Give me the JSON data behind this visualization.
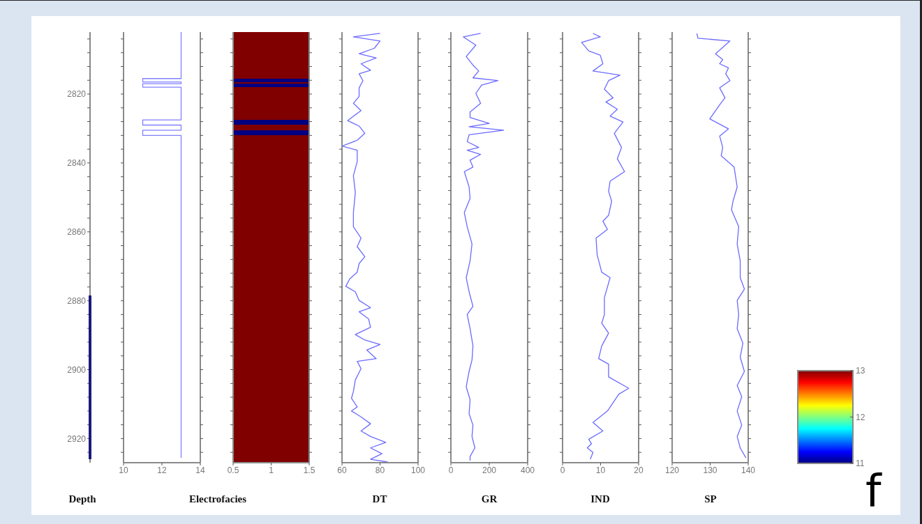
{
  "chart_data": [
    {
      "type": "line",
      "orientation": "horizontal",
      "xlabel": "Electrofacies",
      "ylabel": "Depth",
      "series": [
        {
          "color": "#8080ff",
          "x": [
            2802,
            2815.5,
            2815.5,
            2816.5,
            2816.5,
            2817,
            2817,
            2818,
            2818,
            2827.5,
            2827.5,
            2829,
            2829,
            2830.5,
            2830.5,
            2832,
            2832,
            2925.6
          ],
          "values": [
            13,
            13,
            11,
            11,
            13,
            13,
            11,
            11,
            13,
            13,
            11,
            11,
            13,
            13,
            11,
            11,
            13,
            13
          ]
        }
      ],
      "xlim": [
        10,
        14
      ],
      "xticks": [
        10,
        12,
        14
      ],
      "ylim": [
        2927,
        2802
      ],
      "yticks": [
        {
          "value": 2804,
          "label": null
        },
        {
          "value": 2808,
          "label": null
        },
        {
          "value": 2812,
          "label": null
        },
        {
          "value": 2816,
          "label": null
        },
        2820,
        {
          "value": 2824,
          "label": null
        },
        {
          "value": 2828,
          "label": null
        },
        {
          "value": 2832,
          "label": null
        },
        {
          "value": 2836,
          "label": null
        },
        2840,
        {
          "value": 2844,
          "label": null
        },
        {
          "value": 2848,
          "label": null
        },
        {
          "value": 2852,
          "label": null
        },
        {
          "value": 2856,
          "label": null
        },
        2860,
        {
          "value": 2864,
          "label": null
        },
        {
          "value": 2868,
          "label": null
        },
        {
          "value": 2872,
          "label": null
        },
        {
          "value": 2876,
          "label": null
        },
        2880,
        {
          "value": 2884,
          "label": null
        },
        {
          "value": 2888,
          "label": null
        },
        {
          "value": 2892,
          "label": null
        },
        {
          "value": 2896,
          "label": null
        },
        2900,
        {
          "value": 2904,
          "label": null
        },
        {
          "value": 2908,
          "label": null
        },
        {
          "value": 2912,
          "label": null
        },
        {
          "value": 2916,
          "label": null
        },
        2920,
        {
          "value": 2924,
          "label": null
        }
      ]
    },
    {
      "type": "heatmap",
      "tick_labels": "x",
      "cells": [
        [
          13
        ],
        [
          13
        ],
        [
          13
        ],
        [
          13
        ],
        [
          13
        ],
        [
          13
        ],
        [
          13
        ],
        [
          13
        ],
        [
          13
        ],
        [
          13
        ],
        [
          13
        ],
        [
          13
        ],
        [
          13
        ],
        [
          13
        ],
        [
          13
        ],
        [
          13
        ],
        [
          13
        ],
        [
          13
        ],
        [
          13
        ],
        [
          13
        ],
        [
          13
        ],
        [
          13
        ],
        [
          13
        ],
        [
          13
        ],
        [
          13
        ],
        [
          13
        ],
        [
          13
        ],
        [
          11
        ],
        [
          11
        ],
        [
          13
        ],
        [
          11
        ],
        [
          11
        ],
        [
          13
        ],
        [
          13
        ],
        [
          13
        ],
        [
          13
        ],
        [
          13
        ],
        [
          13
        ],
        [
          13
        ],
        [
          13
        ],
        [
          13
        ],
        [
          13
        ],
        [
          13
        ],
        [
          13
        ],
        [
          13
        ],
        [
          13
        ],
        [
          13
        ],
        [
          13
        ],
        [
          13
        ],
        [
          13
        ],
        [
          13
        ],
        [
          11
        ],
        [
          11
        ],
        [
          11
        ],
        [
          13
        ],
        [
          13
        ],
        [
          13
        ],
        [
          11
        ],
        [
          11
        ],
        [
          11
        ],
        [
          13
        ],
        [
          13
        ],
        [
          13
        ],
        [
          13
        ],
        [
          13
        ],
        [
          13
        ],
        [
          13
        ],
        [
          13
        ],
        [
          13
        ],
        [
          13
        ],
        [
          13
        ],
        [
          13
        ],
        [
          13
        ],
        [
          13
        ],
        [
          13
        ],
        [
          13
        ],
        [
          13
        ],
        [
          13
        ],
        [
          13
        ],
        [
          13
        ],
        [
          13
        ],
        [
          13
        ],
        [
          13
        ],
        [
          13
        ],
        [
          13
        ],
        [
          13
        ],
        [
          13
        ],
        [
          13
        ],
        [
          13
        ],
        [
          13
        ],
        [
          13
        ],
        [
          13
        ],
        [
          13
        ],
        [
          13
        ],
        [
          13
        ],
        [
          13
        ],
        [
          13
        ],
        [
          13
        ],
        [
          13
        ],
        [
          13
        ],
        [
          13
        ],
        [
          13
        ],
        [
          13
        ],
        [
          13
        ],
        [
          13
        ],
        [
          13
        ],
        [
          13
        ],
        [
          13
        ],
        [
          13
        ],
        [
          13
        ],
        [
          13
        ],
        [
          13
        ],
        [
          13
        ],
        [
          13
        ],
        [
          13
        ],
        [
          13
        ],
        [
          13
        ],
        [
          13
        ],
        [
          13
        ],
        [
          13
        ],
        [
          13
        ],
        [
          13
        ],
        [
          13
        ],
        [
          13
        ],
        [
          13
        ],
        [
          13
        ],
        [
          13
        ],
        [
          13
        ],
        [
          13
        ],
        [
          13
        ],
        [
          13
        ],
        [
          13
        ],
        [
          13
        ],
        [
          13
        ],
        [
          13
        ],
        [
          13
        ],
        [
          13
        ],
        [
          13
        ],
        [
          13
        ],
        [
          13
        ],
        [
          13
        ],
        [
          13
        ],
        [
          13
        ],
        [
          13
        ],
        [
          13
        ],
        [
          13
        ],
        [
          13
        ],
        [
          13
        ],
        [
          13
        ],
        [
          13
        ],
        [
          13
        ],
        [
          13
        ],
        [
          13
        ],
        [
          13
        ],
        [
          13
        ],
        [
          13
        ],
        [
          13
        ],
        [
          13
        ],
        [
          13
        ],
        [
          13
        ],
        [
          13
        ],
        [
          13
        ],
        [
          13
        ],
        [
          13
        ],
        [
          13
        ],
        [
          13
        ],
        [
          13
        ],
        [
          13
        ],
        [
          13
        ],
        [
          13
        ],
        [
          13
        ],
        [
          13
        ],
        [
          13
        ],
        [
          13
        ],
        [
          13
        ],
        [
          13
        ],
        [
          13
        ],
        [
          13
        ],
        [
          13
        ],
        [
          13
        ],
        [
          13
        ],
        [
          13
        ],
        [
          13
        ],
        [
          13
        ],
        [
          13
        ],
        [
          13
        ],
        [
          13
        ],
        [
          13
        ],
        [
          13
        ],
        [
          13
        ],
        [
          13
        ],
        [
          13
        ],
        [
          13
        ],
        [
          13
        ],
        [
          13
        ],
        [
          13
        ],
        [
          13
        ],
        [
          13
        ],
        [
          13
        ],
        [
          13
        ],
        [
          13
        ],
        [
          13
        ],
        [
          13
        ],
        [
          13
        ],
        [
          13
        ],
        [
          13
        ],
        [
          13
        ],
        [
          13
        ],
        [
          13
        ],
        [
          13
        ],
        [
          13
        ],
        [
          13
        ],
        [
          13
        ],
        [
          13
        ],
        [
          13
        ],
        [
          13
        ],
        [
          13
        ],
        [
          13
        ],
        [
          13
        ],
        [
          13
        ],
        [
          13
        ],
        [
          13
        ],
        [
          13
        ],
        [
          13
        ],
        [
          13
        ],
        [
          13
        ],
        [
          13
        ],
        [
          13
        ],
        [
          13
        ],
        [
          13
        ],
        [
          13
        ],
        [
          13
        ],
        [
          13
        ],
        [
          13
        ],
        [
          13
        ],
        [
          13
        ],
        [
          13
        ],
        [
          13
        ],
        [
          13
        ],
        [
          13
        ],
        [
          13
        ],
        [
          13
        ],
        [
          13
        ],
        [
          13
        ],
        [
          13
        ],
        [
          13
        ],
        [
          13
        ],
        [
          13
        ],
        [
          13
        ],
        [
          13
        ]
      ],
      "clim": [
        11,
        13
      ],
      "cticks": [
        11,
        12,
        13
      ],
      "xlim": [
        0.5,
        1.5
      ],
      "xticks": [
        0.5,
        1,
        1.5
      ],
      "ylim": [
        2927,
        2802
      ],
      "yticks": [
        {
          "value": 2804,
          "label": null
        },
        {
          "value": 2808,
          "label": null
        },
        {
          "value": 2812,
          "label": null
        },
        {
          "value": 2816,
          "label": null
        },
        2820,
        {
          "value": 2824,
          "label": null
        },
        {
          "value": 2828,
          "label": null
        },
        {
          "value": 2832,
          "label": null
        },
        {
          "value": 2836,
          "label": null
        },
        2840,
        {
          "value": 2844,
          "label": null
        },
        {
          "value": 2848,
          "label": null
        },
        {
          "value": 2852,
          "label": null
        },
        {
          "value": 2856,
          "label": null
        },
        2860,
        {
          "value": 2864,
          "label": null
        },
        {
          "value": 2868,
          "label": null
        },
        {
          "value": 2872,
          "label": null
        },
        {
          "value": 2876,
          "label": null
        },
        2880,
        {
          "value": 2884,
          "label": null
        },
        {
          "value": 2888,
          "label": null
        },
        {
          "value": 2892,
          "label": null
        },
        {
          "value": 2896,
          "label": null
        },
        2900,
        {
          "value": 2904,
          "label": null
        },
        {
          "value": 2908,
          "label": null
        },
        {
          "value": 2912,
          "label": null
        },
        {
          "value": 2916,
          "label": null
        },
        2920,
        {
          "value": 2924,
          "label": null
        }
      ],
      "annotations": [
        "f"
      ]
    },
    {
      "type": "line",
      "orientation": "horizontal",
      "xlabel": "DT",
      "tick_labels": "x",
      "series": [
        {
          "color": "#6b6bff",
          "x": [
            2802.4,
            2803.4,
            2804.6,
            2806.7,
            2808.3,
            2809.5,
            2811.2,
            2813.1,
            2814.1,
            2816.1,
            2818.2,
            2820.7,
            2822.7,
            2824.8,
            2827.7,
            2829.3,
            2831.4,
            2833.4,
            2835.1,
            2836.3,
            2839.6,
            2843.7,
            2848.6,
            2854.4,
            2858.5,
            2861.8,
            2864.3,
            2867.2,
            2869.2,
            2871.7,
            2873.7,
            2875.8,
            2877.4,
            2879.9,
            2882,
            2883.2,
            2885.3,
            2887.7,
            2889.8,
            2891.4,
            2892.7,
            2894.3,
            2896.8,
            2897.6,
            2899.7,
            2903,
            2906.3,
            2908.3,
            2910.8,
            2912,
            2913.7,
            2915.7,
            2917.8,
            2919.4,
            2921.1,
            2922.7,
            2924.4,
            2926,
            2926.8
          ],
          "values": [
            80,
            66,
            80,
            77,
            69,
            78,
            70,
            75,
            69,
            71,
            69,
            69,
            66,
            70,
            63,
            69,
            72,
            68,
            60,
            68,
            68,
            66,
            67,
            66,
            66,
            70,
            68,
            72,
            69,
            68,
            64,
            62,
            67,
            69,
            75,
            69,
            74,
            75,
            67,
            72,
            80,
            73,
            78,
            68,
            70,
            67,
            66,
            65,
            68,
            65,
            70,
            75,
            70,
            75,
            83,
            75,
            81,
            75,
            84
          ]
        }
      ],
      "xlim": [
        60,
        100
      ],
      "xticks": [
        60,
        80,
        100
      ],
      "ylim": [
        2927,
        2802
      ],
      "yticks": [
        {
          "value": 2804,
          "label": null
        },
        {
          "value": 2808,
          "label": null
        },
        {
          "value": 2812,
          "label": null
        },
        {
          "value": 2816,
          "label": null
        },
        2820,
        {
          "value": 2824,
          "label": null
        },
        {
          "value": 2828,
          "label": null
        },
        {
          "value": 2832,
          "label": null
        },
        {
          "value": 2836,
          "label": null
        },
        2840,
        {
          "value": 2844,
          "label": null
        },
        {
          "value": 2848,
          "label": null
        },
        {
          "value": 2852,
          "label": null
        },
        {
          "value": 2856,
          "label": null
        },
        2860,
        {
          "value": 2864,
          "label": null
        },
        {
          "value": 2868,
          "label": null
        },
        {
          "value": 2872,
          "label": null
        },
        {
          "value": 2876,
          "label": null
        },
        2880,
        {
          "value": 2884,
          "label": null
        },
        {
          "value": 2888,
          "label": null
        },
        {
          "value": 2892,
          "label": null
        },
        {
          "value": 2896,
          "label": null
        },
        2900,
        {
          "value": 2904,
          "label": null
        },
        {
          "value": 2908,
          "label": null
        },
        {
          "value": 2912,
          "label": null
        },
        {
          "value": 2916,
          "label": null
        },
        2920,
        {
          "value": 2924,
          "label": null
        }
      ]
    },
    {
      "type": "line",
      "orientation": "horizontal",
      "xlabel": "GR",
      "tick_labels": "x",
      "series": [
        {
          "color": "#6b6bff",
          "x": [
            2802.4,
            2803.4,
            2805.8,
            2809.1,
            2811.6,
            2813.3,
            2815.3,
            2816.1,
            2817.4,
            2819.8,
            2822.7,
            2825.2,
            2826.8,
            2828.5,
            2829.5,
            2830.5,
            2831.8,
            2833.8,
            2835.5,
            2836.3,
            2837.5,
            2839.2,
            2841.2,
            2842.5,
            2847,
            2850.3,
            2854.4,
            2858.5,
            2863.5,
            2868.4,
            2873.3,
            2877.4,
            2881.6,
            2884,
            2888.1,
            2893.1,
            2897.2,
            2900.5,
            2905,
            2908.7,
            2912.8,
            2916.1,
            2919.4,
            2922.7,
            2925.2,
            2926.4
          ],
          "values": [
            155,
            65,
            130,
            80,
            115,
            145,
            115,
            245,
            160,
            130,
            155,
            100,
            100,
            200,
            95,
            275,
            95,
            85,
            145,
            85,
            155,
            100,
            115,
            70,
            95,
            100,
            70,
            85,
            110,
            100,
            80,
            95,
            115,
            85,
            100,
            115,
            110,
            95,
            80,
            100,
            95,
            115,
            110,
            125,
            100,
            100
          ]
        }
      ],
      "xlim": [
        0,
        400
      ],
      "xticks": [
        0,
        200,
        400
      ],
      "ylim": [
        2927,
        2802
      ],
      "yticks": [
        {
          "value": 2804,
          "label": null
        },
        {
          "value": 2808,
          "label": null
        },
        {
          "value": 2812,
          "label": null
        },
        {
          "value": 2816,
          "label": null
        },
        2820,
        {
          "value": 2824,
          "label": null
        },
        {
          "value": 2828,
          "label": null
        },
        {
          "value": 2832,
          "label": null
        },
        {
          "value": 2836,
          "label": null
        },
        2840,
        {
          "value": 2844,
          "label": null
        },
        {
          "value": 2848,
          "label": null
        },
        {
          "value": 2852,
          "label": null
        },
        {
          "value": 2856,
          "label": null
        },
        2860,
        {
          "value": 2864,
          "label": null
        },
        {
          "value": 2868,
          "label": null
        },
        {
          "value": 2872,
          "label": null
        },
        {
          "value": 2876,
          "label": null
        },
        2880,
        {
          "value": 2884,
          "label": null
        },
        {
          "value": 2888,
          "label": null
        },
        {
          "value": 2892,
          "label": null
        },
        {
          "value": 2896,
          "label": null
        },
        2900,
        {
          "value": 2904,
          "label": null
        },
        {
          "value": 2908,
          "label": null
        },
        {
          "value": 2912,
          "label": null
        },
        {
          "value": 2916,
          "label": null
        },
        2920,
        {
          "value": 2924,
          "label": null
        }
      ]
    },
    {
      "type": "line",
      "orientation": "horizontal",
      "xlabel": "IND",
      "tick_labels": "x",
      "series": [
        {
          "color": "#6b6bff",
          "x": [
            2802.4,
            2803.4,
            2805,
            2807.5,
            2808.7,
            2811.2,
            2813.3,
            2814.5,
            2816.1,
            2818.6,
            2821.1,
            2822.3,
            2824.4,
            2826.4,
            2828.1,
            2831.4,
            2835.5,
            2838.8,
            2842.5,
            2845.3,
            2848.2,
            2851.1,
            2855.2,
            2856.9,
            2859.3,
            2861.8,
            2866.7,
            2871.7,
            2873.3,
            2879.1,
            2884,
            2886.5,
            2889.4,
            2893.1,
            2896.8,
            2898.4,
            2902.1,
            2905.4,
            2907.1,
            2912,
            2915.3,
            2917.8,
            2920.2,
            2921.5,
            2922.7,
            2924,
            2926
          ],
          "values": [
            8,
            9.9,
            5,
            6.9,
            9.9,
            10.6,
            8,
            15.1,
            12.1,
            11,
            13.3,
            11.4,
            14.4,
            12.5,
            15.9,
            13.6,
            15.5,
            14.4,
            16.3,
            12.5,
            12.1,
            12.9,
            12.1,
            10.6,
            11.8,
            8.8,
            9.1,
            10.3,
            12.5,
            11,
            11,
            10.3,
            12.1,
            10.3,
            9.5,
            12.1,
            12.1,
            17.4,
            14.8,
            11.8,
            8,
            10.6,
            6.9,
            7.6,
            6.5,
            8,
            7.3
          ]
        }
      ],
      "xlim": [
        0,
        20
      ],
      "xticks": [
        0,
        10,
        20
      ],
      "ylim": [
        2927,
        2802
      ],
      "yticks": [
        {
          "value": 2804,
          "label": null
        },
        {
          "value": 2808,
          "label": null
        },
        {
          "value": 2812,
          "label": null
        },
        {
          "value": 2816,
          "label": null
        },
        2820,
        {
          "value": 2824,
          "label": null
        },
        {
          "value": 2828,
          "label": null
        },
        {
          "value": 2832,
          "label": null
        },
        {
          "value": 2836,
          "label": null
        },
        2840,
        {
          "value": 2844,
          "label": null
        },
        {
          "value": 2848,
          "label": null
        },
        {
          "value": 2852,
          "label": null
        },
        {
          "value": 2856,
          "label": null
        },
        2860,
        {
          "value": 2864,
          "label": null
        },
        {
          "value": 2868,
          "label": null
        },
        {
          "value": 2872,
          "label": null
        },
        {
          "value": 2876,
          "label": null
        },
        2880,
        {
          "value": 2884,
          "label": null
        },
        {
          "value": 2888,
          "label": null
        },
        {
          "value": 2892,
          "label": null
        },
        {
          "value": 2896,
          "label": null
        },
        2900,
        {
          "value": 2904,
          "label": null
        },
        {
          "value": 2908,
          "label": null
        },
        {
          "value": 2912,
          "label": null
        },
        {
          "value": 2916,
          "label": null
        },
        2920,
        {
          "value": 2924,
          "label": null
        }
      ]
    },
    {
      "type": "line",
      "orientation": "horizontal",
      "xlabel": "SP",
      "tick_labels": "x",
      "series": [
        {
          "color": "#6b6bff",
          "x": [
            2802.4,
            2803.8,
            2804.6,
            2808.3,
            2810,
            2811.2,
            2812.4,
            2814.1,
            2816.1,
            2818.2,
            2821.1,
            2823.1,
            2827.2,
            2830.1,
            2832.2,
            2835.5,
            2837.9,
            2841.2,
            2847,
            2851.1,
            2853.6,
            2858.5,
            2863.5,
            2868.4,
            2873.3,
            2876.6,
            2879.9,
            2884,
            2888.1,
            2892.3,
            2896.4,
            2900.5,
            2904.6,
            2907.9,
            2912,
            2916.1,
            2919.4,
            2922.7,
            2925.6
          ],
          "values": [
            126.5,
            126.8,
            135.2,
            131.4,
            133.3,
            132.5,
            134.8,
            134.1,
            135.2,
            132.5,
            133.9,
            132.5,
            129.9,
            134.8,
            132.5,
            133.3,
            132.9,
            136.3,
            137.1,
            136,
            135.6,
            137.5,
            137.1,
            137.9,
            137.9,
            139,
            137.1,
            137.5,
            137.1,
            138.6,
            137.9,
            139,
            137.1,
            138.3,
            137.1,
            138.3,
            137.1,
            137.9,
            139.4
          ]
        }
      ],
      "xlim": [
        120,
        140
      ],
      "xticks": [
        120,
        130,
        140
      ],
      "ylim": [
        2927,
        2802
      ],
      "yticks": [
        {
          "value": 2804,
          "label": null
        },
        {
          "value": 2808,
          "label": null
        },
        {
          "value": 2812,
          "label": null
        },
        {
          "value": 2816,
          "label": null
        },
        2820,
        {
          "value": 2824,
          "label": null
        },
        {
          "value": 2828,
          "label": null
        },
        {
          "value": 2832,
          "label": null
        },
        {
          "value": 2836,
          "label": null
        },
        2840,
        {
          "value": 2844,
          "label": null
        },
        {
          "value": 2848,
          "label": null
        },
        {
          "value": 2852,
          "label": null
        },
        {
          "value": 2856,
          "label": null
        },
        2860,
        {
          "value": 2864,
          "label": null
        },
        {
          "value": 2868,
          "label": null
        },
        {
          "value": 2872,
          "label": null
        },
        {
          "value": 2876,
          "label": null
        },
        2880,
        {
          "value": 2884,
          "label": null
        },
        {
          "value": 2888,
          "label": null
        },
        {
          "value": 2892,
          "label": null
        },
        {
          "value": 2896,
          "label": null
        },
        2900,
        {
          "value": 2904,
          "label": null
        },
        {
          "value": 2908,
          "label": null
        },
        {
          "value": 2912,
          "label": null
        },
        {
          "value": 2916,
          "label": null
        },
        2920,
        {
          "value": 2924,
          "label": null
        }
      ]
    }
  ]
}
